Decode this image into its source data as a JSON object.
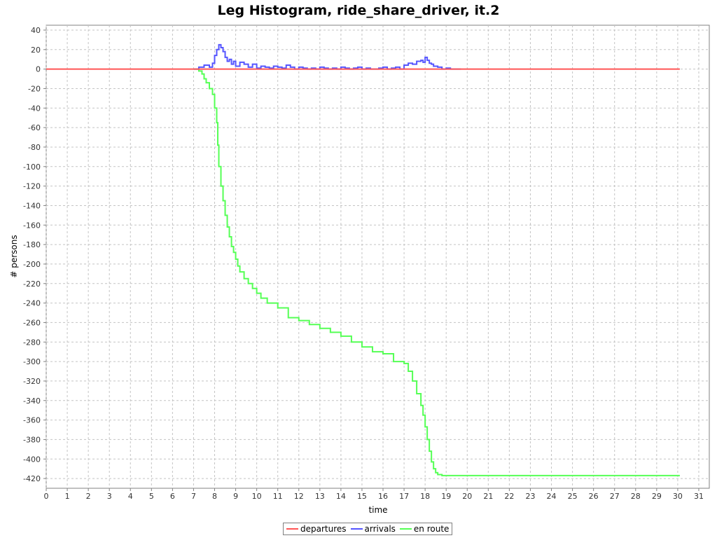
{
  "chart_data": {
    "type": "line",
    "title": "Leg Histogram, ride_share_driver, it.2",
    "xlabel": "time",
    "ylabel": "# persons",
    "xlim": [
      0,
      31.5
    ],
    "ylim": [
      -430,
      45
    ],
    "xticks": [
      0,
      1,
      2,
      3,
      4,
      5,
      6,
      7,
      8,
      9,
      10,
      11,
      12,
      13,
      14,
      15,
      16,
      17,
      18,
      19,
      20,
      21,
      22,
      23,
      24,
      25,
      26,
      27,
      28,
      29,
      30,
      31
    ],
    "yticks": [
      40,
      20,
      0,
      -20,
      -40,
      -60,
      -80,
      -100,
      -120,
      -140,
      -160,
      -180,
      -200,
      -220,
      -240,
      -260,
      -280,
      -300,
      -320,
      -340,
      -360,
      -380,
      -400,
      -420
    ],
    "grid": true,
    "legend_position": "bottom",
    "series": [
      {
        "name": "departures",
        "color": "#ff5555",
        "step": true,
        "x": [
          0,
          30.1
        ],
        "y": [
          0,
          0
        ]
      },
      {
        "name": "arrivals",
        "color": "#5555ff",
        "step": true,
        "x": [
          7.0,
          7.25,
          7.5,
          7.75,
          7.9,
          8.0,
          8.1,
          8.2,
          8.3,
          8.4,
          8.5,
          8.6,
          8.7,
          8.8,
          8.9,
          9.0,
          9.2,
          9.4,
          9.6,
          9.8,
          10.0,
          10.2,
          10.4,
          10.6,
          10.8,
          11.0,
          11.2,
          11.4,
          11.6,
          11.8,
          12.0,
          12.2,
          12.4,
          12.6,
          12.8,
          13.0,
          13.2,
          13.4,
          13.6,
          13.8,
          14.0,
          14.2,
          14.4,
          14.6,
          14.8,
          15.0,
          15.2,
          15.4,
          15.6,
          15.8,
          16.0,
          16.2,
          16.4,
          16.6,
          16.8,
          17.0,
          17.2,
          17.4,
          17.6,
          17.8,
          17.9,
          18.0,
          18.1,
          18.2,
          18.3,
          18.4,
          18.6,
          18.8,
          19.0,
          19.2,
          19.5,
          19.7
        ],
        "y": [
          0,
          2,
          4,
          2,
          6,
          14,
          20,
          25,
          22,
          18,
          12,
          8,
          10,
          5,
          8,
          3,
          7,
          5,
          2,
          5,
          1,
          3,
          2,
          1,
          3,
          2,
          1,
          4,
          2,
          0,
          2,
          1,
          0,
          1,
          0,
          2,
          1,
          0,
          1,
          0,
          2,
          1,
          0,
          1,
          2,
          0,
          1,
          0,
          0,
          1,
          2,
          0,
          1,
          2,
          0,
          4,
          6,
          5,
          8,
          9,
          7,
          12,
          9,
          6,
          5,
          3,
          2,
          0,
          1,
          0,
          0,
          0
        ]
      },
      {
        "name": "en route",
        "color": "#55ff55",
        "step": true,
        "x": [
          7.0,
          7.25,
          7.4,
          7.5,
          7.6,
          7.75,
          7.9,
          8.0,
          8.1,
          8.15,
          8.2,
          8.3,
          8.4,
          8.5,
          8.6,
          8.7,
          8.8,
          8.9,
          9.0,
          9.1,
          9.2,
          9.4,
          9.6,
          9.8,
          10.0,
          10.2,
          10.5,
          11.0,
          11.5,
          12.0,
          12.5,
          13.0,
          13.5,
          14.0,
          14.5,
          15.0,
          15.5,
          16.0,
          16.5,
          17.0,
          17.2,
          17.4,
          17.6,
          17.8,
          17.9,
          18.0,
          18.1,
          18.2,
          18.3,
          18.4,
          18.5,
          18.6,
          18.8,
          19.0,
          19.2,
          19.5,
          30.1
        ],
        "y": [
          0,
          -2,
          -5,
          -10,
          -14,
          -20,
          -26,
          -40,
          -55,
          -78,
          -100,
          -120,
          -135,
          -150,
          -162,
          -172,
          -182,
          -188,
          -195,
          -202,
          -208,
          -215,
          -220,
          -225,
          -230,
          -235,
          -240,
          -245,
          -255,
          -258,
          -262,
          -266,
          -270,
          -274,
          -280,
          -285,
          -290,
          -292,
          -300,
          -302,
          -310,
          -320,
          -333,
          -345,
          -355,
          -367,
          -380,
          -392,
          -403,
          -410,
          -414,
          -416,
          -417,
          -417,
          -417,
          -417,
          -417
        ]
      }
    ]
  }
}
